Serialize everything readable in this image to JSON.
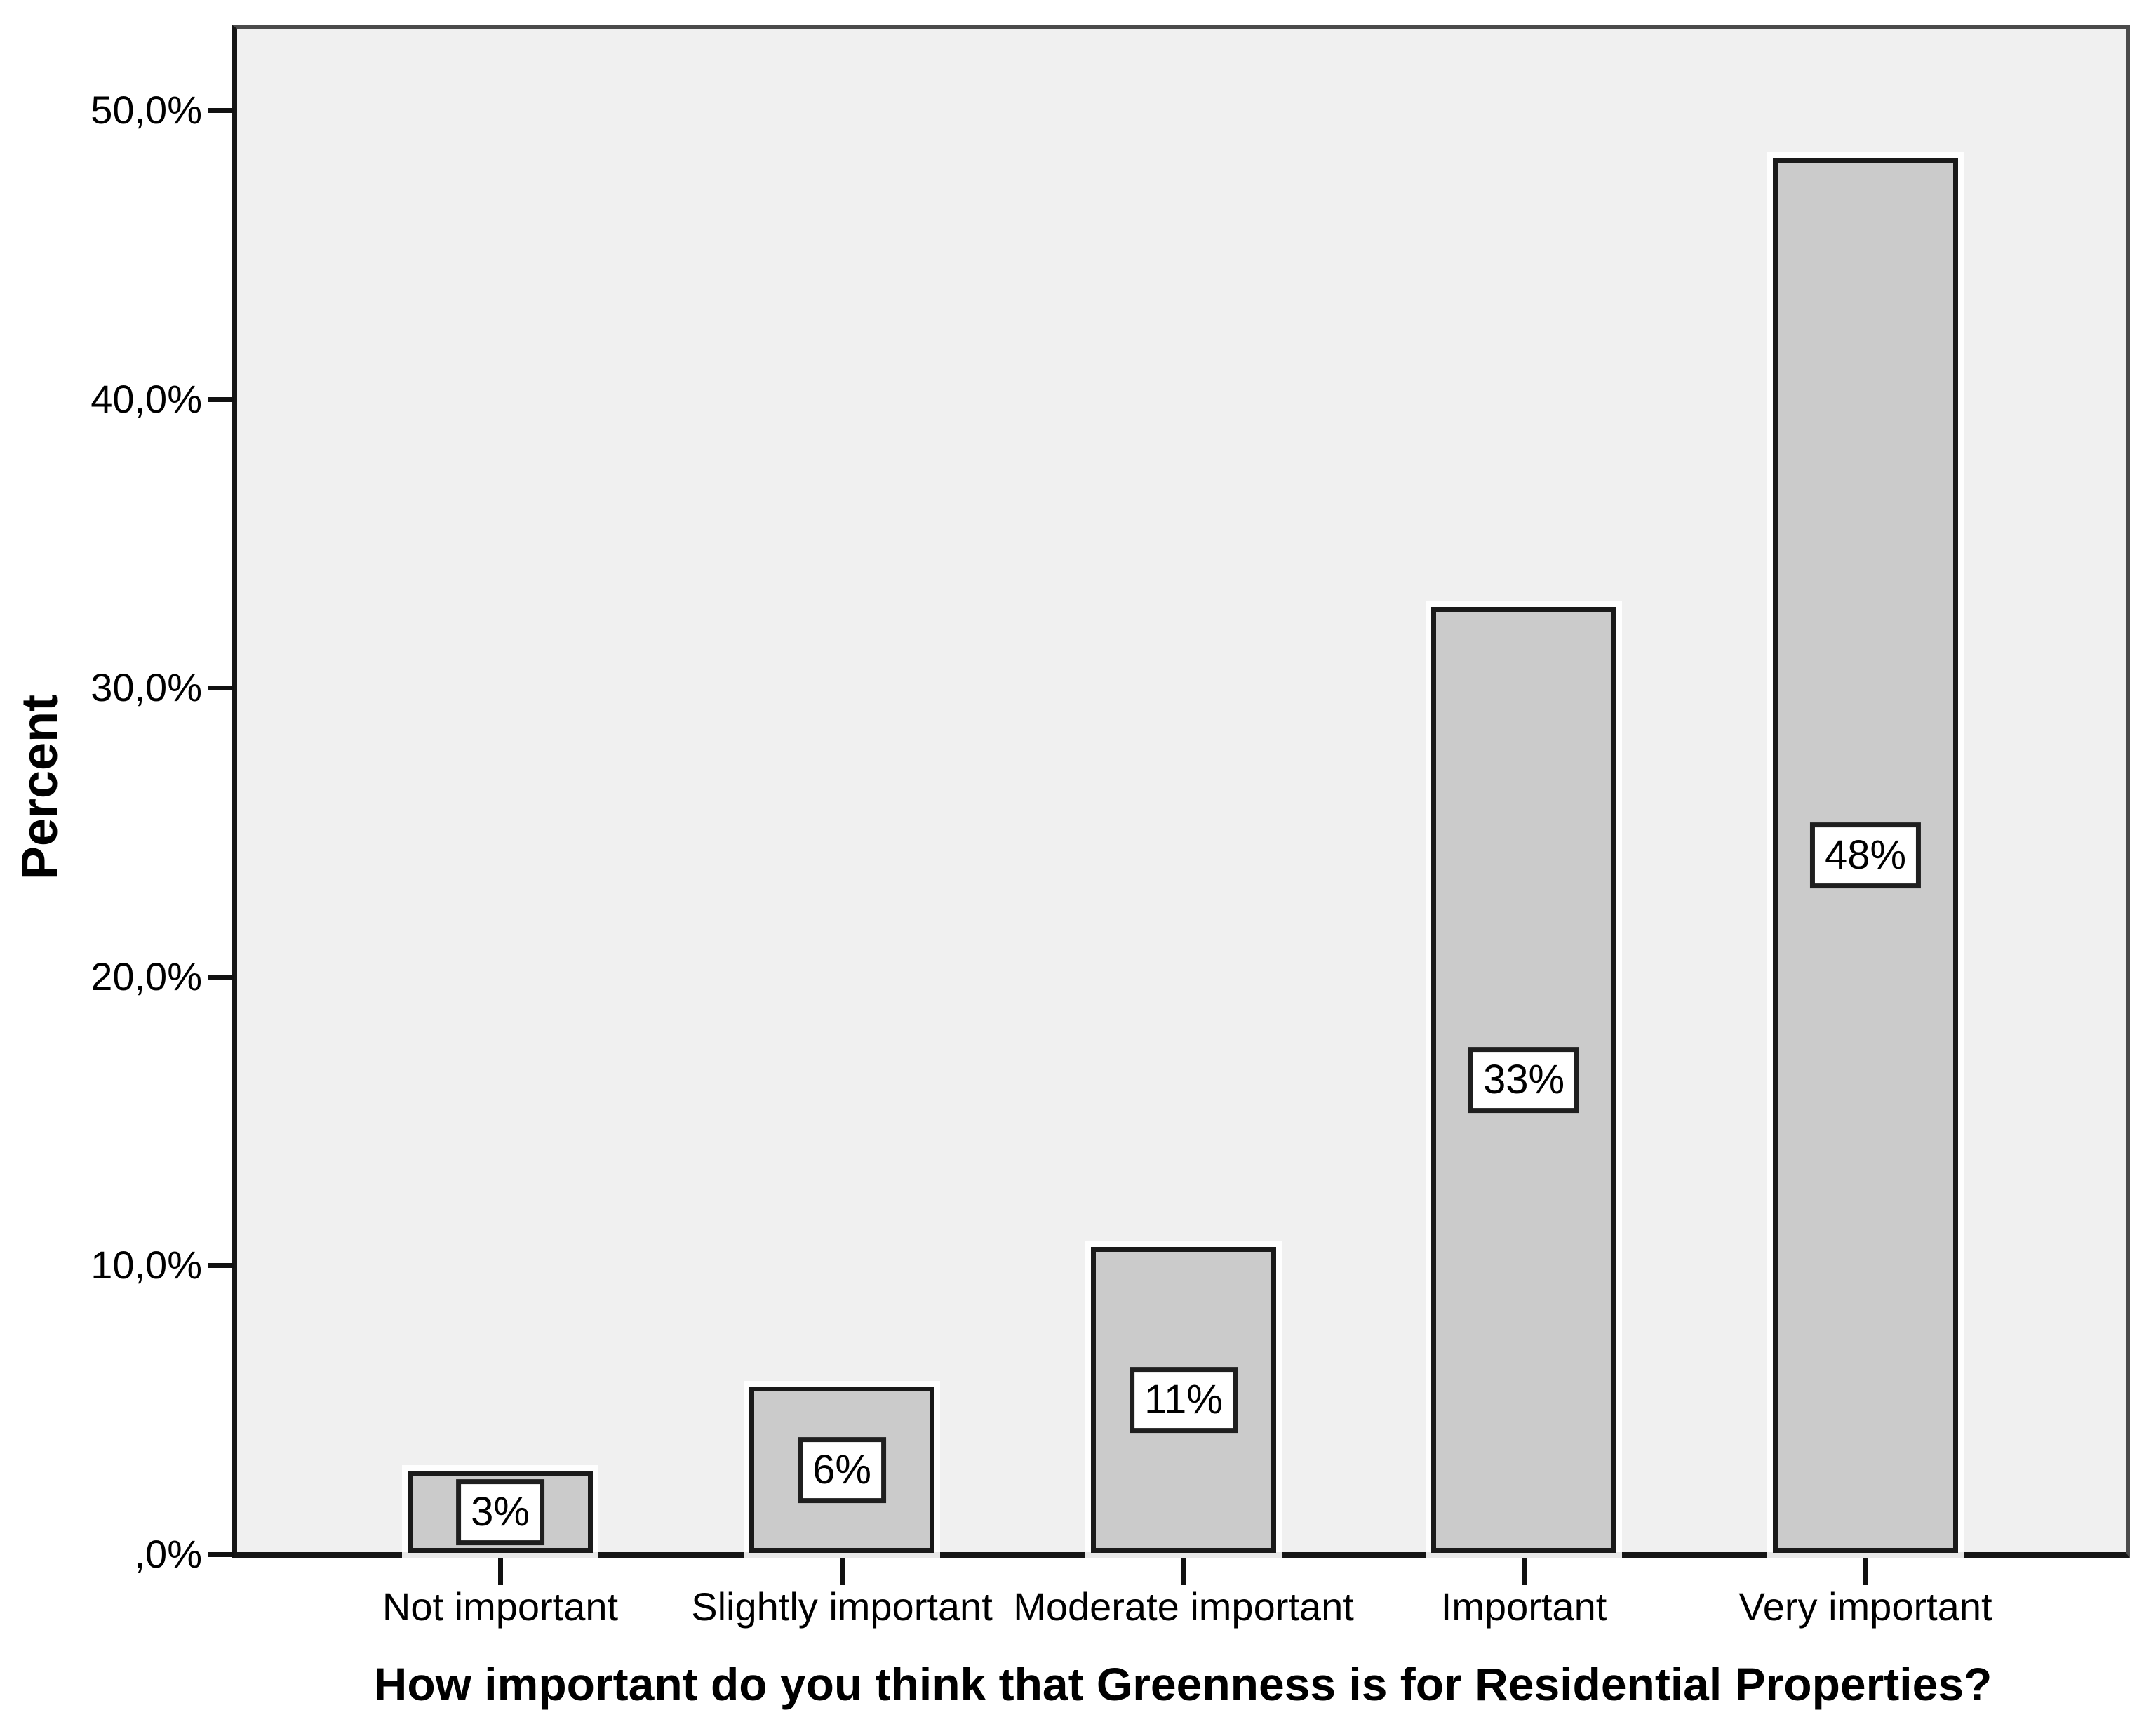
{
  "chart_data": {
    "type": "bar",
    "title": "",
    "xlabel": "How important do you think that Greenness is for Residential Properties?",
    "ylabel": "Percent",
    "categories": [
      "Not important",
      "Slightly important",
      "Moderate important",
      "Important",
      "Very important"
    ],
    "values": [
      3,
      6,
      11,
      33,
      48
    ],
    "bar_value_labels": [
      "3%",
      "6%",
      "11%",
      "33%",
      "48%"
    ],
    "bar_heights_percent_estimated": [
      2.9,
      5.8,
      10.65,
      32.8,
      48.35
    ],
    "y_ticks": [
      {
        "value": 0,
        "label": ",0%"
      },
      {
        "value": 10,
        "label": "10,0%"
      },
      {
        "value": 20,
        "label": "20,0%"
      },
      {
        "value": 30,
        "label": "30,0%"
      },
      {
        "value": 40,
        "label": "40,0%"
      },
      {
        "value": 50,
        "label": "50,0%"
      }
    ],
    "ylim": [
      0,
      52.9
    ],
    "grid": false,
    "legend_position": "none",
    "bar_label_style": "boxed, centered vertically inside each bar"
  },
  "colors": {
    "bar_fill": "#cbcbcb",
    "bar_border": "#1a1a1a",
    "plot_background": "#f0f0f0",
    "page_background": "#ffffff",
    "axis_line": "#161616",
    "frame_line": "#4a4a4a",
    "text": "#000000",
    "value_label_background": "#ffffff"
  }
}
